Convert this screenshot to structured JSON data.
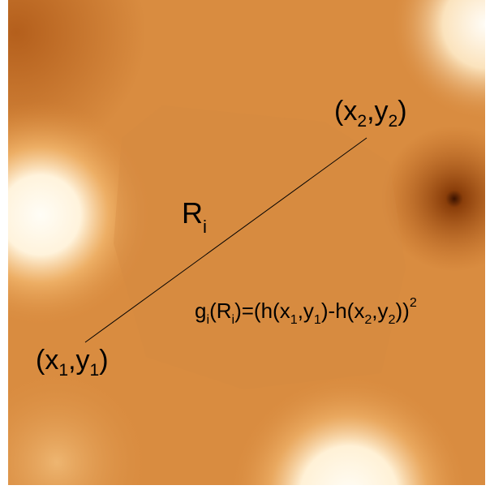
{
  "labels": {
    "point_2": [
      "(x",
      "2",
      ",y",
      "2",
      ")"
    ],
    "distance": [
      "R",
      "i"
    ],
    "formula": [
      "g",
      "i",
      "(R",
      "i",
      ")=(h(x",
      "1",
      ",y",
      "1",
      ")-h(x",
      "2",
      ",y",
      "2",
      "))",
      "2"
    ],
    "point_1": [
      "(x",
      "1",
      ",y",
      "1",
      ")"
    ]
  }
}
